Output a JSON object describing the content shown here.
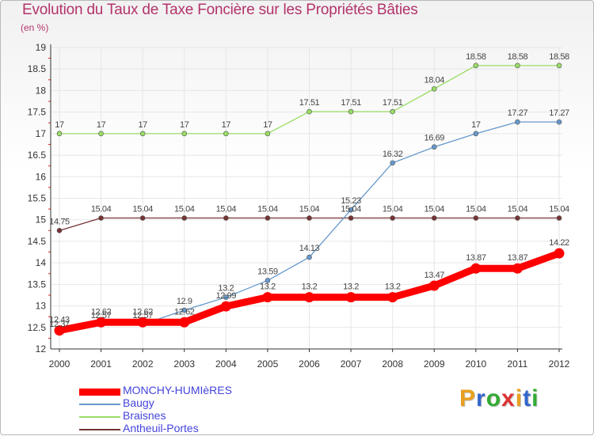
{
  "chart_data": {
    "type": "line",
    "title": "Evolution du Taux de Taxe Foncière sur les Propriétés Bâties",
    "subtitle": "(en %)",
    "xlabel": "",
    "ylabel": "(en %)",
    "ylim": [
      12,
      19
    ],
    "y_ticks": [
      "12",
      "12.5",
      "13",
      "13.5",
      "14",
      "14.5",
      "15",
      "15.5",
      "16",
      "16.5",
      "17",
      "17.5",
      "18",
      "18.5",
      "19"
    ],
    "x": [
      "2000",
      "2001",
      "2002",
      "2003",
      "2004",
      "2005",
      "2006",
      "2007",
      "2008",
      "2009",
      "2010",
      "2011",
      "2012"
    ],
    "grid": true,
    "series": [
      {
        "name": "Braisnes",
        "color": "#99dd66",
        "values": [
          17,
          17,
          17,
          17,
          17,
          17,
          17.51,
          17.51,
          17.51,
          18.04,
          18.58,
          18.58,
          18.58
        ],
        "labels": [
          "17",
          "17",
          "17",
          "17",
          "17",
          "17",
          "17.51",
          "17.51",
          "17.51",
          "18.04",
          "18.58",
          "18.58",
          "18.58"
        ]
      },
      {
        "name": "Antheuil-Portes",
        "color": "#773333",
        "values": [
          14.75,
          15.04,
          15.04,
          15.04,
          15.04,
          15.04,
          15.04,
          15.04,
          15.04,
          15.04,
          15.04,
          15.04,
          15.04
        ],
        "labels": [
          "14.75",
          "15.04",
          "15.04",
          "15.04",
          "15.04",
          "15.04",
          "15.04",
          "15.04",
          "15.04",
          "15.04",
          "15.04",
          "15.04",
          "15.04"
        ]
      },
      {
        "name": "Baugy",
        "color": "#6699cc",
        "values": [
          12.37,
          12.57,
          12.57,
          12.9,
          13.2,
          13.59,
          14.13,
          15.23,
          16.32,
          16.69,
          17,
          17.27,
          17.27
        ],
        "labels": [
          "12.37",
          "12.57",
          "12.57",
          "12.9",
          "13.2",
          "13.59",
          "14.13",
          "15.23",
          "16.32",
          "16.69",
          "17",
          "17.27",
          "17.27"
        ]
      },
      {
        "name": "MONCHY-HUMIèRES",
        "color": "#ff0000",
        "values": [
          12.43,
          12.62,
          12.62,
          12.62,
          12.99,
          13.2,
          13.2,
          13.2,
          13.2,
          13.47,
          13.87,
          13.87,
          14.22
        ],
        "labels": [
          "12.43",
          "12.62",
          "12.62",
          "12.62",
          "12.99",
          "13.2",
          "13.2",
          "13.2",
          "13.2",
          "13.47",
          "13.87",
          "13.87",
          "14.22"
        ]
      }
    ],
    "legend": [
      "MONCHY-HUMIèRES",
      "Baugy",
      "Braisnes",
      "Antheuil-Portes"
    ],
    "legend_position": "bottom-left"
  },
  "logo": {
    "letters": [
      "P",
      "r",
      "o",
      "x",
      "i",
      "t",
      "i"
    ],
    "colors": [
      "#e8a020",
      "#3366cc",
      "#33aa33",
      "#dd3333",
      "#e8a020",
      "#3366cc",
      "#33aa33"
    ]
  }
}
